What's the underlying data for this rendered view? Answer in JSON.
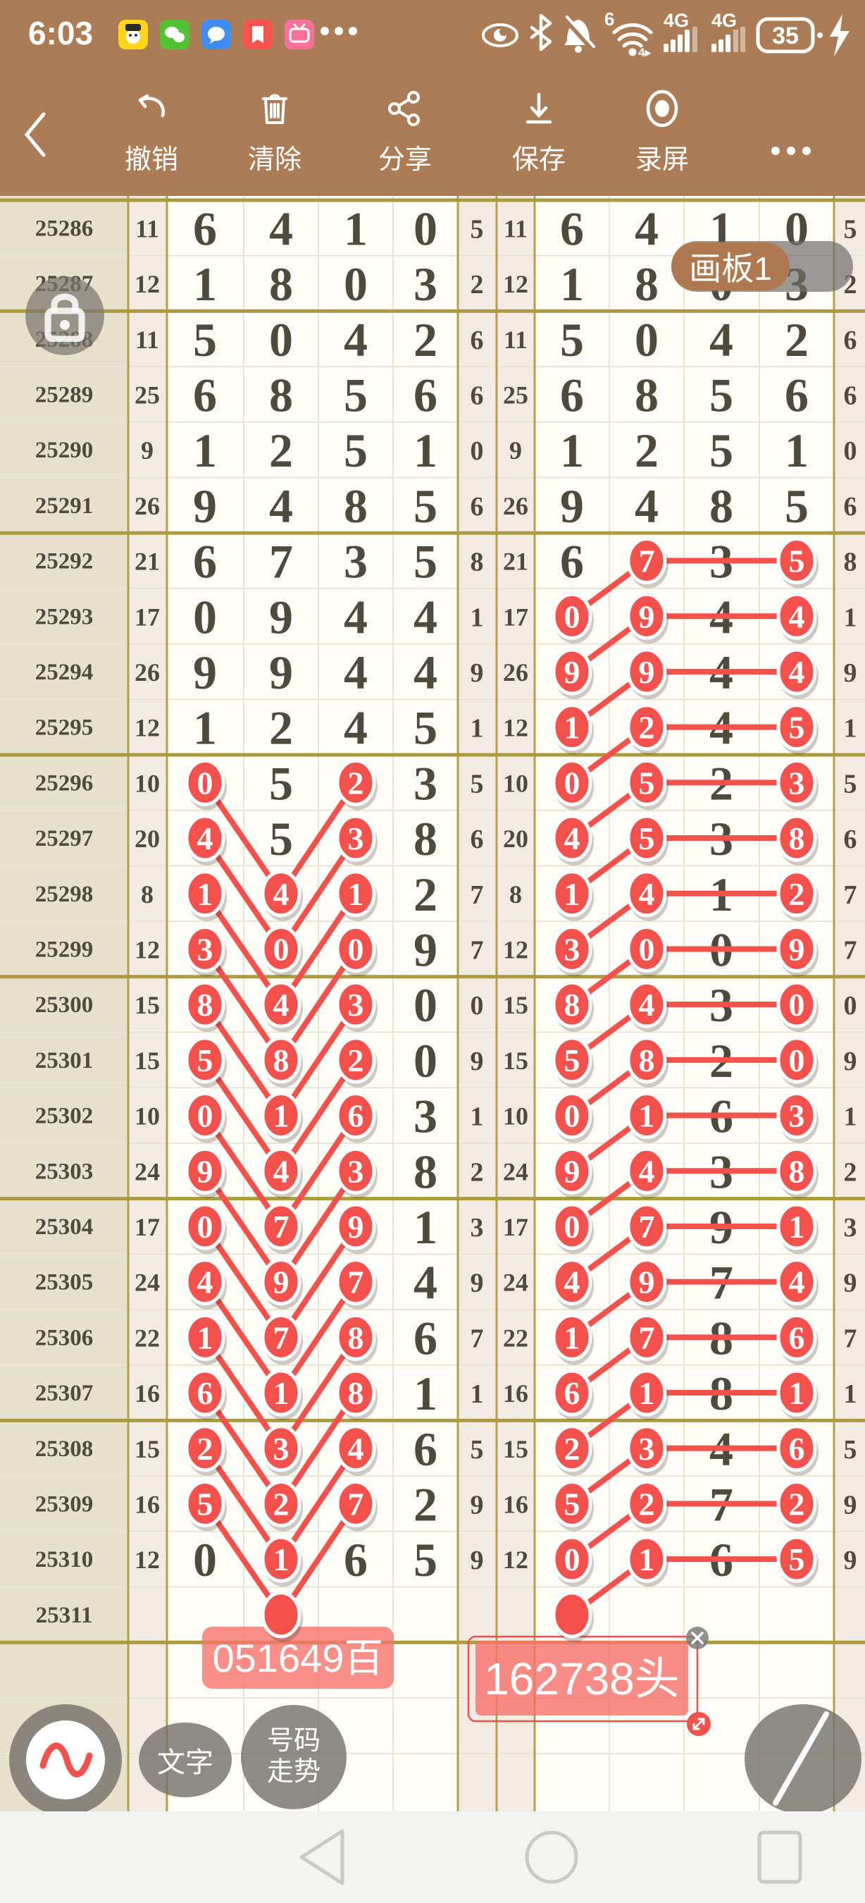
{
  "status_bar": {
    "time": "6:03",
    "battery": "35",
    "network_label": "4G",
    "wifi_gen": "6",
    "app_icons": [
      "chat-app",
      "wechat",
      "messages",
      "notes",
      "bilibili"
    ]
  },
  "toolbar": {
    "back": "‹",
    "items": [
      {
        "label": "撤销",
        "icon": "undo-icon"
      },
      {
        "label": "清除",
        "icon": "trash-icon"
      },
      {
        "label": "分享",
        "icon": "share-icon"
      },
      {
        "label": "保存",
        "icon": "save-icon"
      },
      {
        "label": "录屏",
        "icon": "record-icon"
      }
    ]
  },
  "artboard_tag": {
    "label": "画板1"
  },
  "annotations": {
    "left_label": "051649百",
    "right_label": "162738头"
  },
  "buttons": {
    "wave": "wave-tool",
    "text_label": "文字",
    "number_trend_line1": "号码",
    "number_trend_line2": "走势",
    "pencil": "draw-tool"
  },
  "colors": {
    "header": "#ab7c55",
    "accent_red": "#f4504c",
    "olive_grid": "#b2a14c",
    "thick_line": "#aa9b41",
    "light_line": "#eae4d3",
    "beige_col": "#e7e0cc",
    "pink_col": "#f3ebe3",
    "cell_white": "#fffdf7",
    "label_salmon": "rgba(248,115,108,0.80)",
    "tag_brown": "#ae7950",
    "digit_dark": "#4e4a3d"
  },
  "table": {
    "rows": [
      {
        "period": "25286",
        "sum": "11",
        "digits": [
          "6",
          "4",
          "1",
          "0"
        ],
        "extra": "5",
        "lc": [],
        "rc": []
      },
      {
        "period": "25287",
        "sum": "12",
        "digits": [
          "1",
          "8",
          "0",
          "3"
        ],
        "extra": "2",
        "lc": [],
        "rc": []
      },
      {
        "period": "25288",
        "sum": "11",
        "digits": [
          "5",
          "0",
          "4",
          "2"
        ],
        "extra": "6",
        "lc": [],
        "rc": []
      },
      {
        "period": "25289",
        "sum": "25",
        "digits": [
          "6",
          "8",
          "5",
          "6"
        ],
        "extra": "6",
        "lc": [],
        "rc": []
      },
      {
        "period": "25290",
        "sum": "9",
        "digits": [
          "1",
          "2",
          "5",
          "1"
        ],
        "extra": "0",
        "lc": [],
        "rc": []
      },
      {
        "period": "25291",
        "sum": "26",
        "digits": [
          "9",
          "4",
          "8",
          "5"
        ],
        "extra": "6",
        "lc": [],
        "rc": []
      },
      {
        "period": "25292",
        "sum": "21",
        "digits": [
          "6",
          "7",
          "3",
          "5"
        ],
        "extra": "8",
        "lc": [],
        "rc": [
          2,
          4
        ]
      },
      {
        "period": "25293",
        "sum": "17",
        "digits": [
          "0",
          "9",
          "4",
          "4"
        ],
        "extra": "1",
        "lc": [],
        "rc": [
          1,
          2,
          4
        ]
      },
      {
        "period": "25294",
        "sum": "26",
        "digits": [
          "9",
          "9",
          "4",
          "4"
        ],
        "extra": "9",
        "lc": [],
        "rc": [
          1,
          2,
          4
        ]
      },
      {
        "period": "25295",
        "sum": "12",
        "digits": [
          "1",
          "2",
          "4",
          "5"
        ],
        "extra": "1",
        "lc": [],
        "rc": [
          1,
          2,
          4
        ]
      },
      {
        "period": "25296",
        "sum": "10",
        "digits": [
          "0",
          "5",
          "2",
          "3"
        ],
        "extra": "5",
        "lc": [
          1,
          3
        ],
        "rc": [
          1,
          2,
          4
        ]
      },
      {
        "period": "25297",
        "sum": "20",
        "digits": [
          "4",
          "5",
          "3",
          "8"
        ],
        "extra": "6",
        "lc": [
          1,
          3
        ],
        "rc": [
          1,
          2,
          4
        ]
      },
      {
        "period": "25298",
        "sum": "8",
        "digits": [
          "1",
          "4",
          "1",
          "2"
        ],
        "extra": "7",
        "lc": [
          1,
          2,
          3
        ],
        "rc": [
          1,
          2,
          4
        ]
      },
      {
        "period": "25299",
        "sum": "12",
        "digits": [
          "3",
          "0",
          "0",
          "9"
        ],
        "extra": "7",
        "lc": [
          1,
          2,
          3
        ],
        "rc": [
          1,
          2,
          4
        ]
      },
      {
        "period": "25300",
        "sum": "15",
        "digits": [
          "8",
          "4",
          "3",
          "0"
        ],
        "extra": "0",
        "lc": [
          1,
          2,
          3
        ],
        "rc": [
          1,
          2,
          4
        ]
      },
      {
        "period": "25301",
        "sum": "15",
        "digits": [
          "5",
          "8",
          "2",
          "0"
        ],
        "extra": "9",
        "lc": [
          1,
          2,
          3
        ],
        "rc": [
          1,
          2,
          4
        ]
      },
      {
        "period": "25302",
        "sum": "10",
        "digits": [
          "0",
          "1",
          "6",
          "3"
        ],
        "extra": "1",
        "lc": [
          1,
          2,
          3
        ],
        "rc": [
          1,
          2,
          4
        ]
      },
      {
        "period": "25303",
        "sum": "24",
        "digits": [
          "9",
          "4",
          "3",
          "8"
        ],
        "extra": "2",
        "lc": [
          1,
          2,
          3
        ],
        "rc": [
          1,
          2,
          4
        ]
      },
      {
        "period": "25304",
        "sum": "17",
        "digits": [
          "0",
          "7",
          "9",
          "1"
        ],
        "extra": "3",
        "lc": [
          1,
          2,
          3
        ],
        "rc": [
          1,
          2,
          4
        ]
      },
      {
        "period": "25305",
        "sum": "24",
        "digits": [
          "4",
          "9",
          "7",
          "4"
        ],
        "extra": "9",
        "lc": [
          1,
          2,
          3
        ],
        "rc": [
          1,
          2,
          4
        ]
      },
      {
        "period": "25306",
        "sum": "22",
        "digits": [
          "1",
          "7",
          "8",
          "6"
        ],
        "extra": "7",
        "lc": [
          1,
          2,
          3
        ],
        "rc": [
          1,
          2,
          4
        ]
      },
      {
        "period": "25307",
        "sum": "16",
        "digits": [
          "6",
          "1",
          "8",
          "1"
        ],
        "extra": "1",
        "lc": [
          1,
          2,
          3
        ],
        "rc": [
          1,
          2,
          4
        ]
      },
      {
        "period": "25308",
        "sum": "15",
        "digits": [
          "2",
          "3",
          "4",
          "6"
        ],
        "extra": "5",
        "lc": [
          1,
          2,
          3
        ],
        "rc": [
          1,
          2,
          4
        ]
      },
      {
        "period": "25309",
        "sum": "16",
        "digits": [
          "5",
          "2",
          "7",
          "2"
        ],
        "extra": "9",
        "lc": [
          1,
          2,
          3
        ],
        "rc": [
          1,
          2,
          4
        ]
      },
      {
        "period": "25310",
        "sum": "12",
        "digits": [
          "0",
          "1",
          "6",
          "5"
        ],
        "extra": "9",
        "lc": [
          2
        ],
        "rc": [
          1,
          2,
          4
        ]
      },
      {
        "period": "25311",
        "sum": "",
        "digits": [
          "",
          "",
          "",
          ""
        ],
        "extra": "",
        "lc": [],
        "rc": []
      }
    ],
    "left_dot": {
      "row": 25,
      "col": 2
    },
    "right_dot": {
      "row": 25,
      "col": 1
    },
    "left_segments": [
      [
        10,
        1,
        12,
        2
      ],
      [
        10,
        3,
        12,
        2
      ],
      [
        11,
        1,
        13,
        2
      ],
      [
        11,
        3,
        13,
        2
      ],
      [
        12,
        1,
        14,
        2
      ],
      [
        12,
        3,
        14,
        2
      ],
      [
        13,
        1,
        15,
        2
      ],
      [
        13,
        3,
        15,
        2
      ],
      [
        14,
        1,
        16,
        2
      ],
      [
        14,
        3,
        16,
        2
      ],
      [
        15,
        1,
        17,
        2
      ],
      [
        15,
        3,
        17,
        2
      ],
      [
        16,
        1,
        18,
        2
      ],
      [
        16,
        3,
        18,
        2
      ],
      [
        17,
        1,
        19,
        2
      ],
      [
        17,
        3,
        19,
        2
      ],
      [
        18,
        1,
        20,
        2
      ],
      [
        18,
        3,
        20,
        2
      ],
      [
        19,
        1,
        21,
        2
      ],
      [
        19,
        3,
        21,
        2
      ],
      [
        20,
        1,
        22,
        2
      ],
      [
        20,
        3,
        22,
        2
      ],
      [
        21,
        1,
        23,
        2
      ],
      [
        21,
        3,
        23,
        2
      ],
      [
        22,
        1,
        24,
        2
      ],
      [
        22,
        3,
        24,
        2
      ],
      [
        23,
        1,
        25,
        2
      ],
      [
        23,
        3,
        25,
        2
      ]
    ],
    "right_segments": [
      [
        6,
        2,
        6,
        4
      ],
      [
        6,
        2,
        7,
        1
      ],
      [
        7,
        2,
        7,
        4
      ],
      [
        7,
        2,
        8,
        1
      ],
      [
        8,
        2,
        8,
        4
      ],
      [
        8,
        2,
        9,
        1
      ],
      [
        9,
        2,
        9,
        4
      ],
      [
        9,
        2,
        10,
        1
      ],
      [
        10,
        2,
        10,
        4
      ],
      [
        10,
        2,
        11,
        1
      ],
      [
        11,
        2,
        11,
        4
      ],
      [
        11,
        2,
        12,
        1
      ],
      [
        12,
        2,
        12,
        4
      ],
      [
        12,
        2,
        13,
        1
      ],
      [
        13,
        2,
        13,
        4
      ],
      [
        13,
        2,
        14,
        1
      ],
      [
        14,
        2,
        14,
        4
      ],
      [
        14,
        2,
        15,
        1
      ],
      [
        15,
        2,
        15,
        4
      ],
      [
        15,
        2,
        16,
        1
      ],
      [
        16,
        2,
        16,
        4
      ],
      [
        16,
        2,
        17,
        1
      ],
      [
        17,
        2,
        17,
        4
      ],
      [
        17,
        2,
        18,
        1
      ],
      [
        18,
        2,
        18,
        4
      ],
      [
        18,
        2,
        19,
        1
      ],
      [
        19,
        2,
        19,
        4
      ],
      [
        19,
        2,
        20,
        1
      ],
      [
        20,
        2,
        20,
        4
      ],
      [
        20,
        2,
        21,
        1
      ],
      [
        21,
        2,
        21,
        4
      ],
      [
        21,
        2,
        22,
        1
      ],
      [
        22,
        2,
        22,
        4
      ],
      [
        22,
        2,
        23,
        1
      ],
      [
        23,
        2,
        23,
        4
      ],
      [
        23,
        2,
        24,
        1
      ],
      [
        24,
        2,
        24,
        4
      ],
      [
        24,
        2,
        25,
        1
      ]
    ]
  }
}
